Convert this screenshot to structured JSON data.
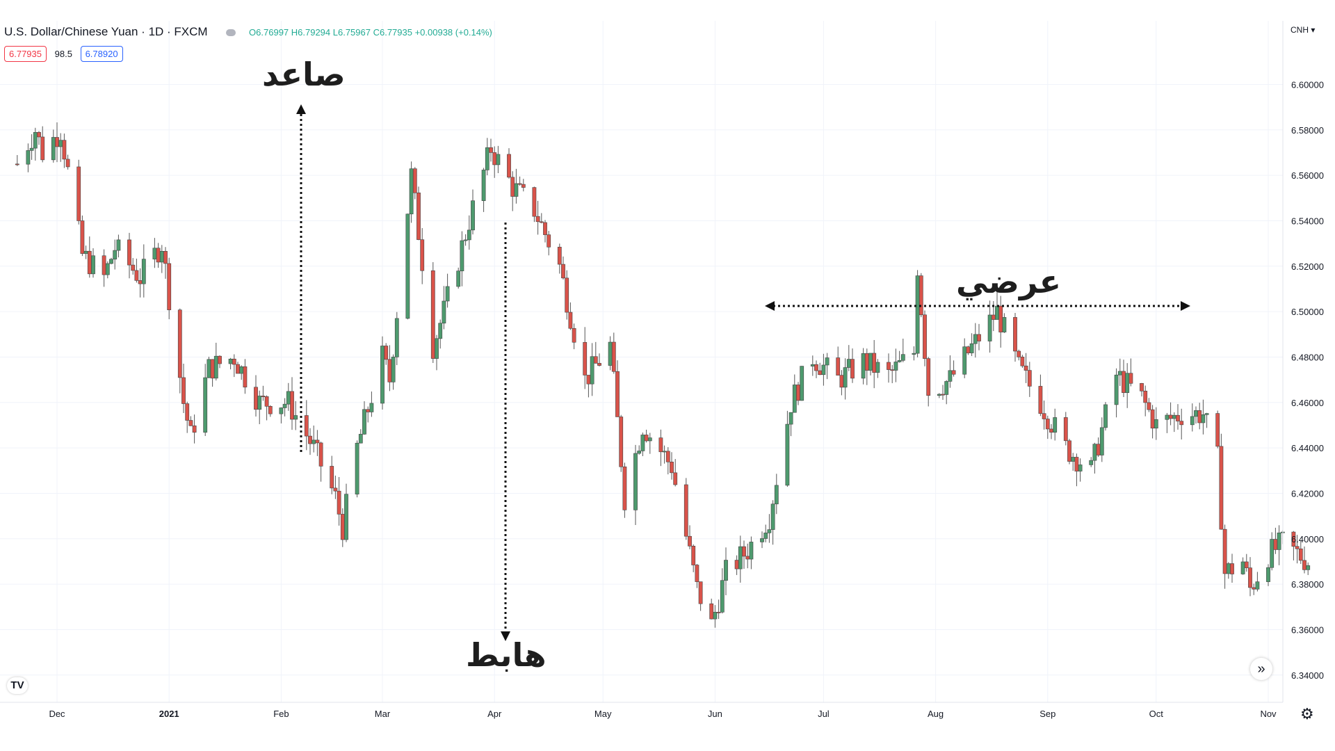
{
  "header": {
    "title": "U.S. Dollar/Chinese Yuan · 1D · FXCM",
    "ohlc": "O6.76997 H6.79294 L6.75967 C6.77935 +0.00938 (+0.14%)",
    "bid": "6.77935",
    "spread": "98.5",
    "ask": "6.78920"
  },
  "currency_label": "CNH",
  "annotations": {
    "up": "صاعد",
    "down": "هابط",
    "sideways": "عرضي"
  },
  "colors": {
    "up": "#4e9a6e",
    "down": "#d9534a",
    "grid": "#f0f3fa",
    "annotation": "#1e1e1e"
  },
  "icons": {
    "logo": "TV",
    "navigate": "»",
    "settings": "⚙"
  },
  "chart_data": {
    "type": "candlestick",
    "x_labels": [
      "Dec",
      "2021",
      "Feb",
      "Mar",
      "Apr",
      "May",
      "Jun",
      "Jul",
      "Aug",
      "Sep",
      "Oct",
      "Nov"
    ],
    "y_ticks": [
      "6.60000",
      "6.58000",
      "6.56000",
      "6.54000",
      "6.52000",
      "6.50000",
      "6.48000",
      "6.46000",
      "6.44000",
      "6.42000",
      "6.40000",
      "6.38000",
      "6.36000",
      "6.34000"
    ],
    "ylim": [
      6.328,
      6.628
    ],
    "waypoints": [
      {
        "date": "2020-11-20",
        "price": 6.565
      },
      {
        "date": "2020-11-25",
        "price": 6.58
      },
      {
        "date": "2020-11-27",
        "price": 6.57
      },
      {
        "date": "2020-12-02",
        "price": 6.58
      },
      {
        "date": "2020-12-08",
        "price": 6.525
      },
      {
        "date": "2020-12-14",
        "price": 6.515
      },
      {
        "date": "2020-12-17",
        "price": 6.528
      },
      {
        "date": "2020-12-24",
        "price": 6.515
      },
      {
        "date": "2020-12-30",
        "price": 6.53
      },
      {
        "date": "2021-01-05",
        "price": 6.46
      },
      {
        "date": "2021-01-07",
        "price": 6.445
      },
      {
        "date": "2021-01-12",
        "price": 6.475
      },
      {
        "date": "2021-01-19",
        "price": 6.48
      },
      {
        "date": "2021-01-26",
        "price": 6.46
      },
      {
        "date": "2021-02-03",
        "price": 6.46
      },
      {
        "date": "2021-02-10",
        "price": 6.44
      },
      {
        "date": "2021-02-16",
        "price": 6.418
      },
      {
        "date": "2021-02-18",
        "price": 6.405
      },
      {
        "date": "2021-02-22",
        "price": 6.44
      },
      {
        "date": "2021-03-01",
        "price": 6.48
      },
      {
        "date": "2021-03-03",
        "price": 6.47
      },
      {
        "date": "2021-03-09",
        "price": 6.56
      },
      {
        "date": "2021-03-15",
        "price": 6.485
      },
      {
        "date": "2021-03-18",
        "price": 6.5
      },
      {
        "date": "2021-03-25",
        "price": 6.54
      },
      {
        "date": "2021-03-31",
        "price": 6.572
      },
      {
        "date": "2021-04-06",
        "price": 6.555
      },
      {
        "date": "2021-04-12",
        "price": 6.545
      },
      {
        "date": "2021-04-19",
        "price": 6.52
      },
      {
        "date": "2021-04-26",
        "price": 6.47
      },
      {
        "date": "2021-05-03",
        "price": 6.485
      },
      {
        "date": "2021-05-07",
        "price": 6.418
      },
      {
        "date": "2021-05-12",
        "price": 6.45
      },
      {
        "date": "2021-05-20",
        "price": 6.432
      },
      {
        "date": "2021-05-27",
        "price": 6.378
      },
      {
        "date": "2021-05-31",
        "price": 6.362
      },
      {
        "date": "2021-06-04",
        "price": 6.385
      },
      {
        "date": "2021-06-10",
        "price": 6.395
      },
      {
        "date": "2021-06-16",
        "price": 6.41
      },
      {
        "date": "2021-06-22",
        "price": 6.46
      },
      {
        "date": "2021-06-28",
        "price": 6.48
      },
      {
        "date": "2021-07-05",
        "price": 6.47
      },
      {
        "date": "2021-07-12",
        "price": 6.478
      },
      {
        "date": "2021-07-19",
        "price": 6.472
      },
      {
        "date": "2021-07-26",
        "price": 6.482
      },
      {
        "date": "2021-07-27",
        "price": 6.52
      },
      {
        "date": "2021-07-30",
        "price": 6.465
      },
      {
        "date": "2021-08-05",
        "price": 6.47
      },
      {
        "date": "2021-08-10",
        "price": 6.482
      },
      {
        "date": "2021-08-18",
        "price": 6.5
      },
      {
        "date": "2021-08-24",
        "price": 6.475
      },
      {
        "date": "2021-08-30",
        "price": 6.46
      },
      {
        "date": "2021-09-06",
        "price": 6.44
      },
      {
        "date": "2021-09-13",
        "price": 6.43
      },
      {
        "date": "2021-09-20",
        "price": 6.472
      },
      {
        "date": "2021-09-27",
        "price": 6.462
      },
      {
        "date": "2021-10-01",
        "price": 6.45
      },
      {
        "date": "2021-10-08",
        "price": 6.455
      },
      {
        "date": "2021-10-14",
        "price": 6.455
      },
      {
        "date": "2021-10-18",
        "price": 6.435
      },
      {
        "date": "2021-10-20",
        "price": 6.385
      },
      {
        "date": "2021-10-25",
        "price": 6.39
      },
      {
        "date": "2021-10-27",
        "price": 6.378
      },
      {
        "date": "2021-11-01",
        "price": 6.393
      },
      {
        "date": "2021-11-05",
        "price": 6.398
      },
      {
        "date": "2021-11-12",
        "price": 6.39
      }
    ]
  }
}
